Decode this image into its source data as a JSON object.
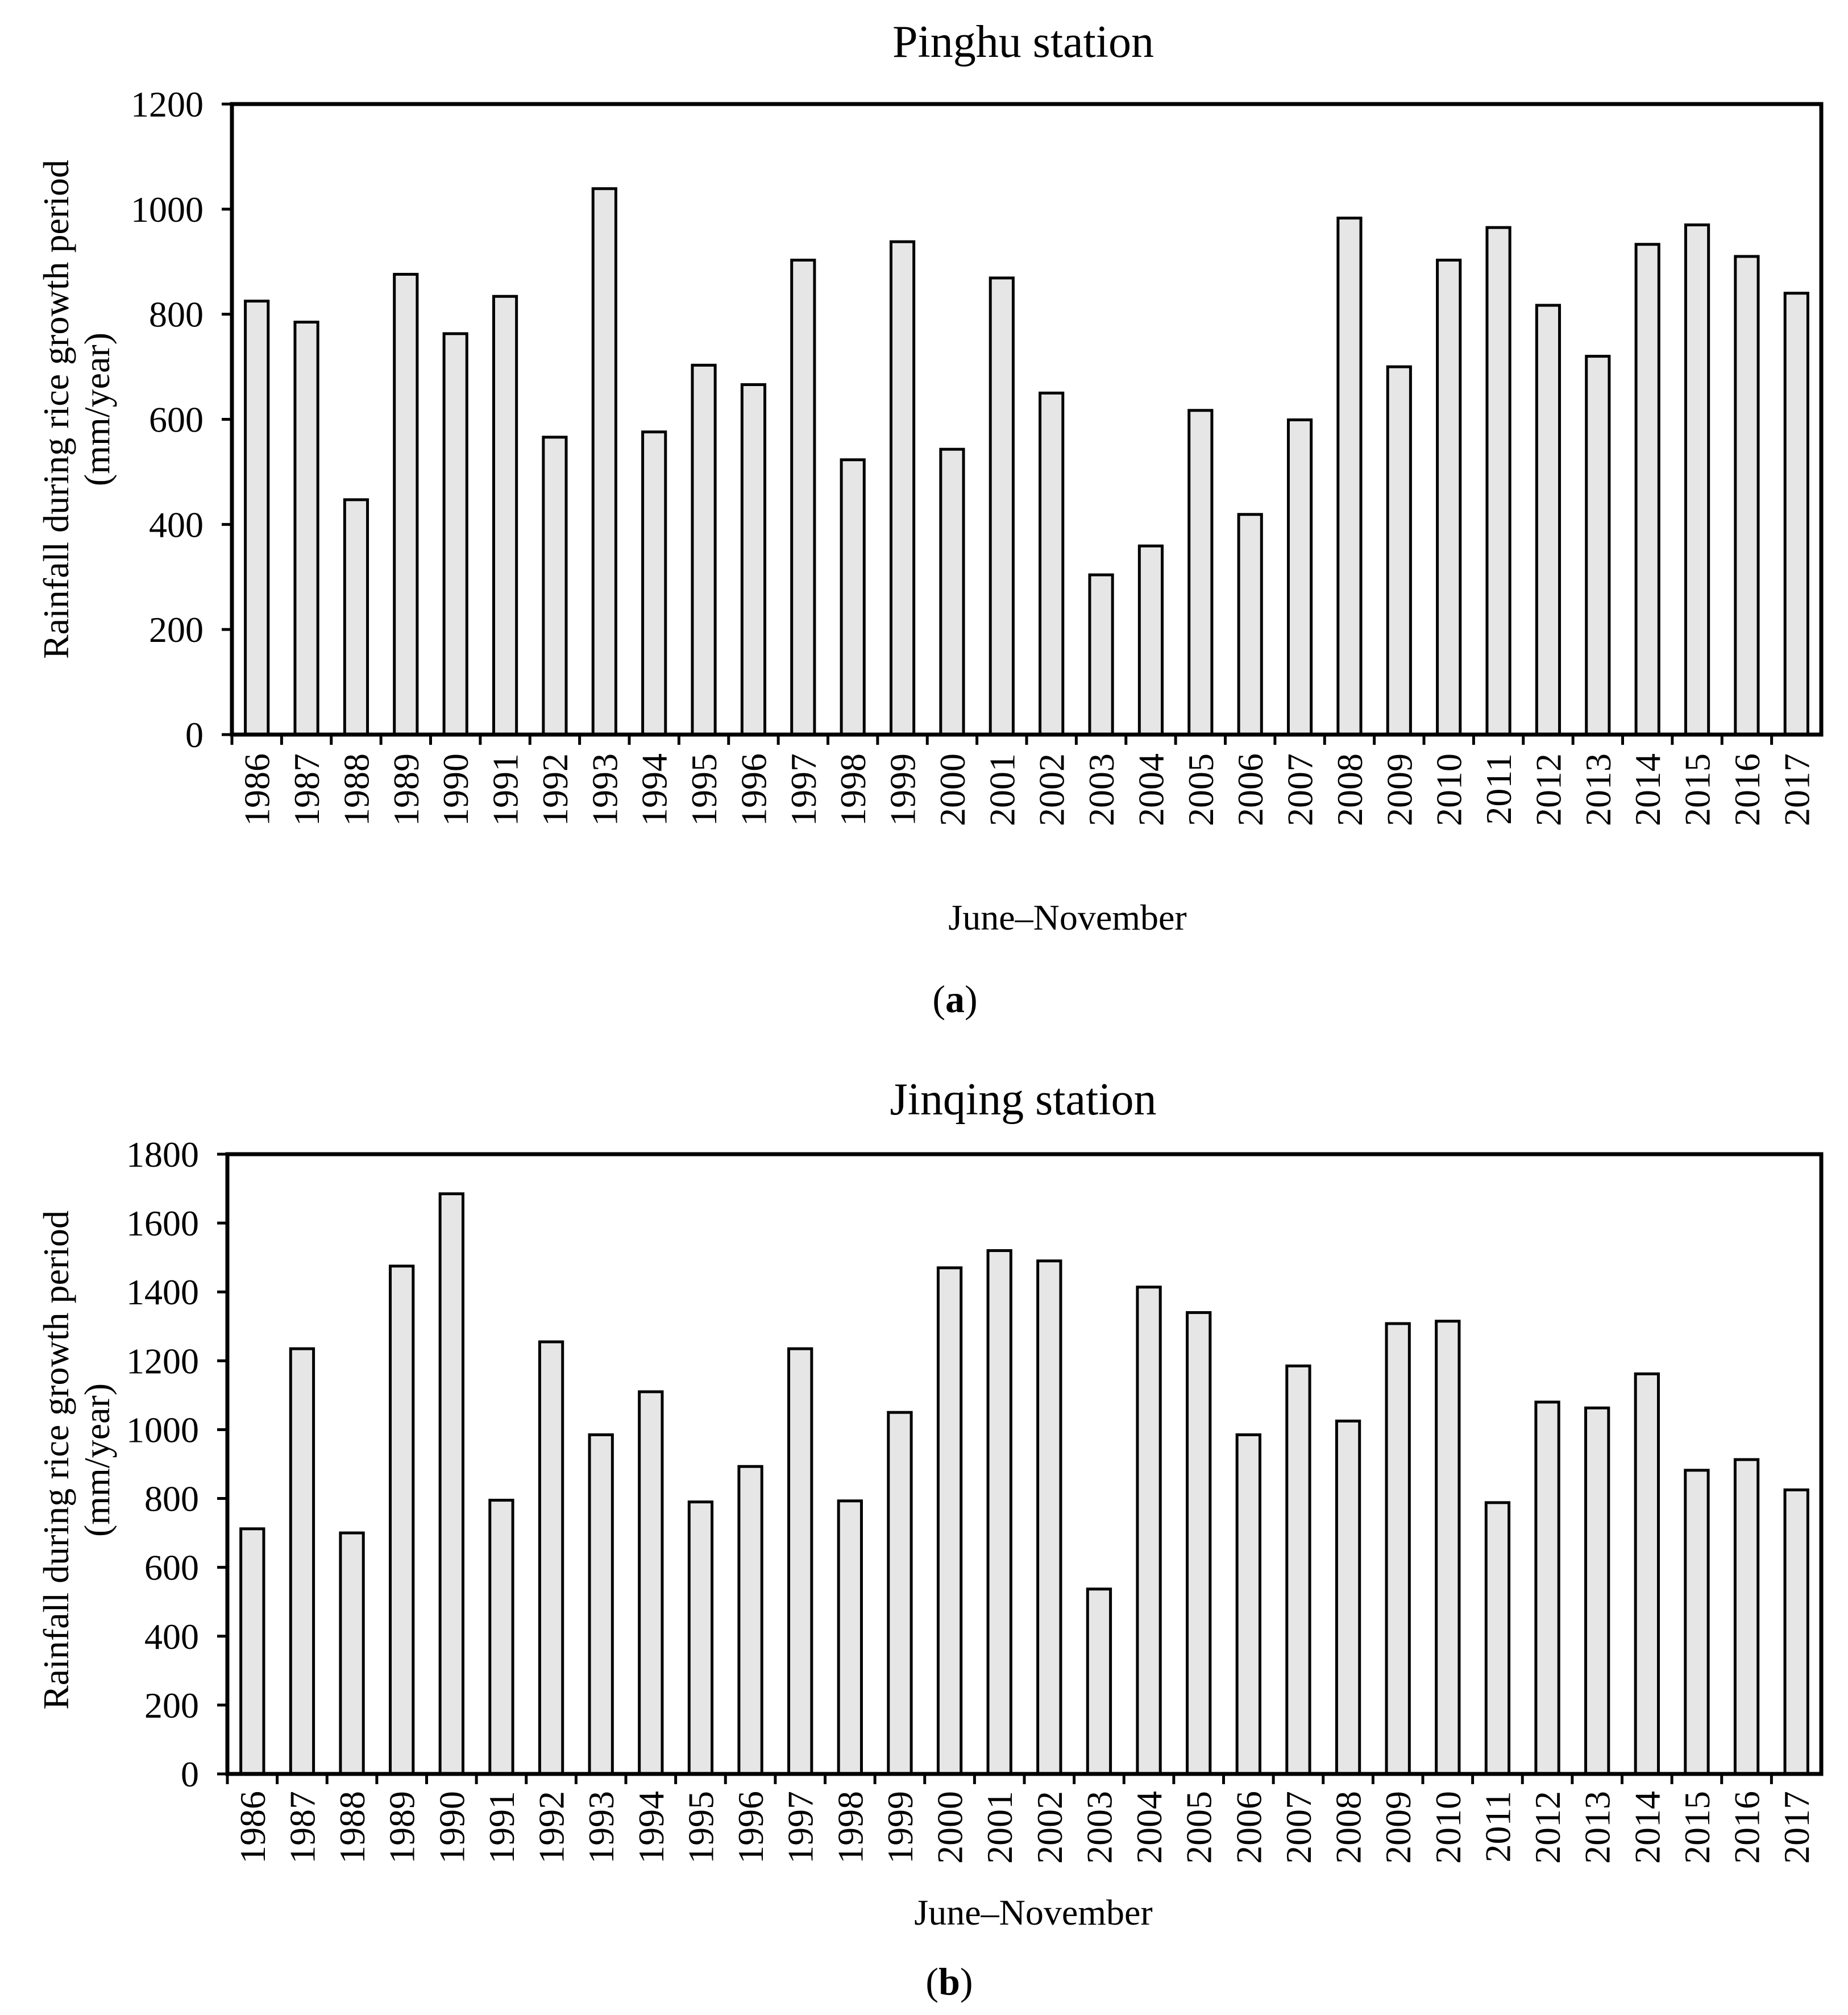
{
  "figure": {
    "bar_fill": "#e6e6e6",
    "bar_stroke": "#000000",
    "background": "#ffffff"
  },
  "chart_data": [
    {
      "type": "bar",
      "panel": "(a)",
      "panel_letter": "a",
      "title": "Pinghu station",
      "xlabel": "June–November",
      "ylabel_line1": "Rainfall during rice growth period",
      "ylabel_line2": "(mm/year)",
      "ylim": [
        0,
        1200
      ],
      "yticks": [
        0,
        200,
        400,
        600,
        800,
        1000,
        1200
      ],
      "categories": [
        "1986",
        "1987",
        "1988",
        "1989",
        "1990",
        "1991",
        "1992",
        "1993",
        "1994",
        "1995",
        "1996",
        "1997",
        "1998",
        "1999",
        "2000",
        "2001",
        "2002",
        "2003",
        "2004",
        "2005",
        "2006",
        "2007",
        "2008",
        "2009",
        "2010",
        "2011",
        "2012",
        "2013",
        "2014",
        "2015",
        "2016",
        "2017"
      ],
      "values": [
        825,
        785,
        447,
        876,
        763,
        834,
        566,
        1039,
        576,
        703,
        666,
        903,
        523,
        938,
        543,
        869,
        650,
        304,
        359,
        617,
        419,
        599,
        983,
        700,
        903,
        965,
        817,
        720,
        933,
        970,
        910,
        840
      ]
    },
    {
      "type": "bar",
      "panel": "(b)",
      "panel_letter": "b",
      "title": "Jinqing station",
      "xlabel": "June–November",
      "ylabel_line1": "Rainfall during rice growth period",
      "ylabel_line2": "(mm/year)",
      "ylim": [
        0,
        1800
      ],
      "yticks": [
        0,
        200,
        400,
        600,
        800,
        1000,
        1200,
        1400,
        1600,
        1800
      ],
      "categories": [
        "1986",
        "1987",
        "1988",
        "1989",
        "1990",
        "1991",
        "1992",
        "1993",
        "1994",
        "1995",
        "1996",
        "1997",
        "1998",
        "1999",
        "2000",
        "2001",
        "2002",
        "2003",
        "2004",
        "2005",
        "2006",
        "2007",
        "2008",
        "2009",
        "2010",
        "2011",
        "2012",
        "2013",
        "2014",
        "2015",
        "2016",
        "2017"
      ],
      "values": [
        712,
        1235,
        700,
        1475,
        1685,
        795,
        1255,
        985,
        1110,
        790,
        893,
        1235,
        793,
        1050,
        1470,
        1520,
        1490,
        537,
        1414,
        1340,
        985,
        1185,
        1025,
        1308,
        1315,
        788,
        1080,
        1063,
        1162,
        882,
        913,
        825
      ]
    }
  ]
}
